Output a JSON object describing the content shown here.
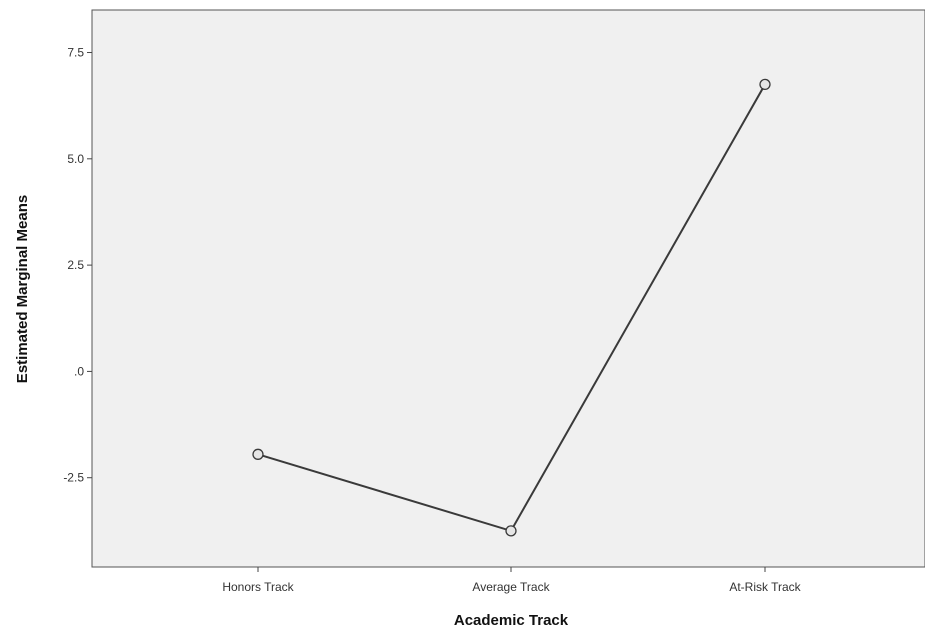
{
  "chart_data": {
    "type": "line",
    "title": "",
    "xlabel": "Academic Track",
    "ylabel": "Estimated Marginal Means",
    "categories": [
      "Honors Track",
      "Average Track",
      "At-Risk Track"
    ],
    "series": [
      {
        "values": [
          -1.95,
          -3.75,
          6.75
        ]
      }
    ],
    "ylim": [
      -4.6,
      8.5
    ],
    "yticks": [
      7.5,
      5.0,
      2.5,
      0.0,
      -2.5
    ],
    "ytick_labels": [
      "7.5",
      "5.0",
      "2.5",
      ".0",
      "-2.5"
    ],
    "grid": false,
    "legend": "none",
    "colors": {
      "plot_background": "#f0f0f0",
      "line": "#3a3a3a",
      "marker_fill": "#e6e6e6",
      "axis": "#444444"
    }
  }
}
